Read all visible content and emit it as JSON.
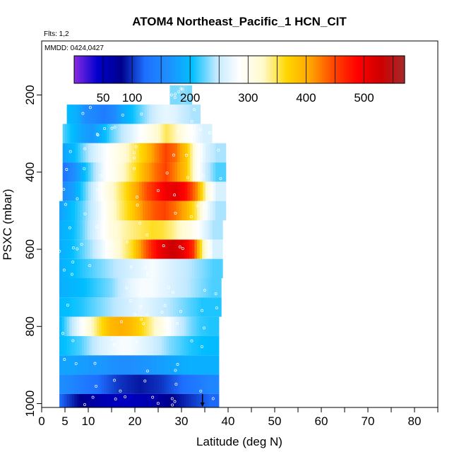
{
  "chart_data": {
    "type": "heatmap",
    "title": "ATOM4 Northeast_Pacific_1 HCN_CIT",
    "flights_label": "Flts: 1,2",
    "dates_label": "MMDD: 0424,0427",
    "xlabel": "Latitude (deg N)",
    "ylabel": "PSXC (mbar)",
    "xlim": [
      0,
      85
    ],
    "ylim": [
      1010,
      60
    ],
    "y_reversed": true,
    "x_ticks": [
      0,
      5,
      10,
      20,
      30,
      40,
      50,
      60,
      70,
      80
    ],
    "x_minor_ticks": [
      0,
      5,
      10,
      15,
      20,
      25,
      30,
      35,
      40,
      45,
      50,
      55,
      60,
      65,
      70,
      75,
      80,
      85
    ],
    "y_ticks": [
      200,
      400,
      600,
      800,
      1000
    ],
    "colorbar": {
      "range": [
        0,
        570
      ],
      "tick_labels": [
        50,
        100,
        200,
        300,
        400,
        500
      ],
      "grid_lines": [
        50,
        100,
        150,
        200,
        250,
        300,
        350,
        400,
        450,
        500,
        550
      ],
      "colors": [
        "#8a2be2",
        "#0000cd",
        "#00008b",
        "#1e6fff",
        "#1e90ff",
        "#00bfff",
        "#bfe8ff",
        "#ffffff",
        "#fffacd",
        "#ffd700",
        "#ffa500",
        "#ff4500",
        "#ff0000",
        "#cd0000",
        "#a52a2a"
      ]
    },
    "rows": [
      {
        "p": [
          175,
          225
        ],
        "lat": [
          27.5,
          32.2
        ],
        "vals": [
          230,
          230,
          230,
          235,
          230
        ]
      },
      {
        "p": [
          225,
          275
        ],
        "lat": [
          5.4,
          34.0
        ],
        "vals": [
          200,
          190,
          160,
          150,
          140,
          150,
          180,
          200,
          220,
          240,
          260,
          270,
          265,
          250,
          240
        ]
      },
      {
        "p": [
          275,
          325
        ],
        "lat": [
          4.5,
          36.5
        ],
        "vals": [
          220,
          200,
          180,
          170,
          190,
          220,
          240,
          260,
          280,
          300,
          320,
          350,
          330,
          300,
          280,
          260
        ]
      },
      {
        "p": [
          325,
          375
        ],
        "lat": [
          4.5,
          39.5
        ],
        "vals": [
          180,
          200,
          230,
          260,
          280,
          300,
          320,
          350,
          380,
          420,
          450,
          430,
          380,
          300,
          260,
          240
        ]
      },
      {
        "p": [
          375,
          425
        ],
        "lat": [
          4.5,
          39.5
        ],
        "vals": [
          130,
          160,
          200,
          240,
          280,
          300,
          330,
          360,
          400,
          430,
          450,
          420,
          380,
          300,
          250,
          220
        ]
      },
      {
        "p": [
          425,
          475
        ],
        "lat": [
          4.5,
          39.5
        ],
        "vals": [
          160,
          180,
          220,
          260,
          300,
          330,
          360,
          400,
          440,
          470,
          500,
          510,
          480,
          420,
          320,
          260
        ]
      },
      {
        "p": [
          475,
          525
        ],
        "lat": [
          3.8,
          39.5
        ],
        "vals": [
          180,
          200,
          220,
          250,
          280,
          320,
          350,
          380,
          420,
          440,
          450,
          430,
          400,
          350,
          280,
          240
        ]
      },
      {
        "p": [
          525,
          575
        ],
        "lat": [
          3.8,
          38.8
        ],
        "vals": [
          190,
          200,
          220,
          250,
          280,
          310,
          330,
          340,
          350,
          360,
          355,
          340,
          320,
          300,
          270,
          240
        ]
      },
      {
        "p": [
          575,
          625
        ],
        "lat": [
          3.8,
          38.8
        ],
        "vals": [
          190,
          200,
          220,
          240,
          270,
          300,
          330,
          360,
          420,
          470,
          510,
          530,
          510,
          460,
          330,
          260
        ]
      },
      {
        "p": [
          625,
          675
        ],
        "lat": [
          3.8,
          38.8
        ],
        "vals": [
          190,
          200,
          210,
          220,
          230,
          240,
          250,
          260,
          270,
          280,
          270,
          260,
          250,
          240,
          230,
          220
        ]
      },
      {
        "p": [
          675,
          725
        ],
        "lat": [
          3.8,
          38.5
        ],
        "vals": [
          190,
          195,
          200,
          210,
          220,
          230,
          250,
          270,
          280,
          280,
          270,
          260,
          250,
          240,
          230,
          220
        ]
      },
      {
        "p": [
          725,
          775
        ],
        "lat": [
          3.8,
          38.5
        ],
        "vals": [
          200,
          205,
          210,
          220,
          230,
          240,
          250,
          260,
          270,
          260,
          250,
          240,
          230,
          220,
          210,
          210
        ]
      },
      {
        "p": [
          775,
          825
        ],
        "lat": [
          3.8,
          38.0
        ],
        "vals": [
          200,
          240,
          280,
          320,
          360,
          390,
          400,
          390,
          370,
          340,
          310,
          280,
          250,
          230,
          215,
          210
        ]
      },
      {
        "p": [
          825,
          875
        ],
        "lat": [
          3.8,
          38.0
        ],
        "vals": [
          200,
          210,
          220,
          240,
          260,
          270,
          280,
          280,
          270,
          260,
          245,
          230,
          220,
          210,
          205,
          200
        ]
      },
      {
        "p": [
          875,
          925
        ],
        "lat": [
          3.8,
          38.0
        ],
        "vals": [
          180,
          180,
          175,
          170,
          170,
          165,
          160,
          160,
          165,
          170,
          175,
          180,
          185,
          190,
          190,
          190
        ]
      },
      {
        "p": [
          925,
          975
        ],
        "lat": [
          3.8,
          38.0
        ],
        "vals": [
          160,
          150,
          140,
          130,
          120,
          110,
          100,
          95,
          90,
          95,
          100,
          110,
          120,
          130,
          140,
          150
        ]
      },
      {
        "p": [
          975,
          1010
        ],
        "lat": [
          3.8,
          38.0
        ],
        "vals": [
          120,
          100,
          80,
          70,
          60,
          55,
          50,
          50,
          55,
          60,
          70,
          80,
          90,
          100,
          110,
          120
        ]
      }
    ],
    "arrow_lat": 34.5
  }
}
